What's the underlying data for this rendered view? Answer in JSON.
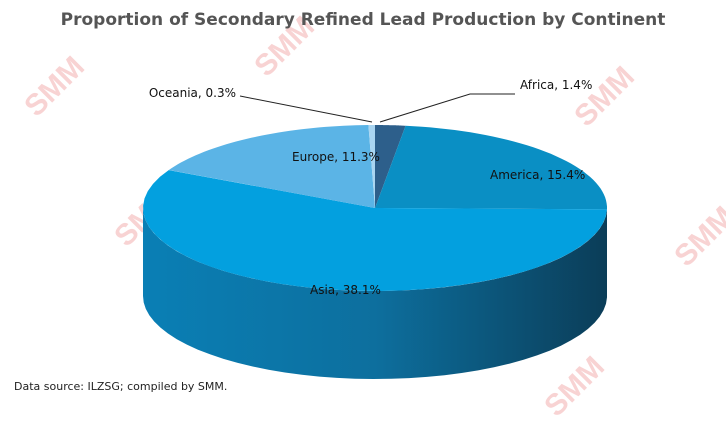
{
  "chart_data": {
    "type": "pie",
    "title": "Proportion of Secondary Refined Lead Production by Continent",
    "slices": [
      {
        "label": "Africa",
        "value": 1.4,
        "display": "Africa, 1.4%",
        "color": "#2d5f8b"
      },
      {
        "label": "America",
        "value": 15.4,
        "display": "America, 15.4%",
        "color": "#0a8fc4"
      },
      {
        "label": "Asia",
        "value": 38.1,
        "display": "Asia, 38.1%",
        "color": "#03a0df"
      },
      {
        "label": "Europe",
        "value": 11.3,
        "display": "Europe, 11.3%",
        "color": "#5bb4e6"
      },
      {
        "label": "Oceania",
        "value": 0.3,
        "display": "Oceania, 0.3%",
        "color": "#a9d5f1"
      }
    ],
    "source": "Data source: ILZSG; compiled by SMM."
  },
  "watermark": "SMM"
}
